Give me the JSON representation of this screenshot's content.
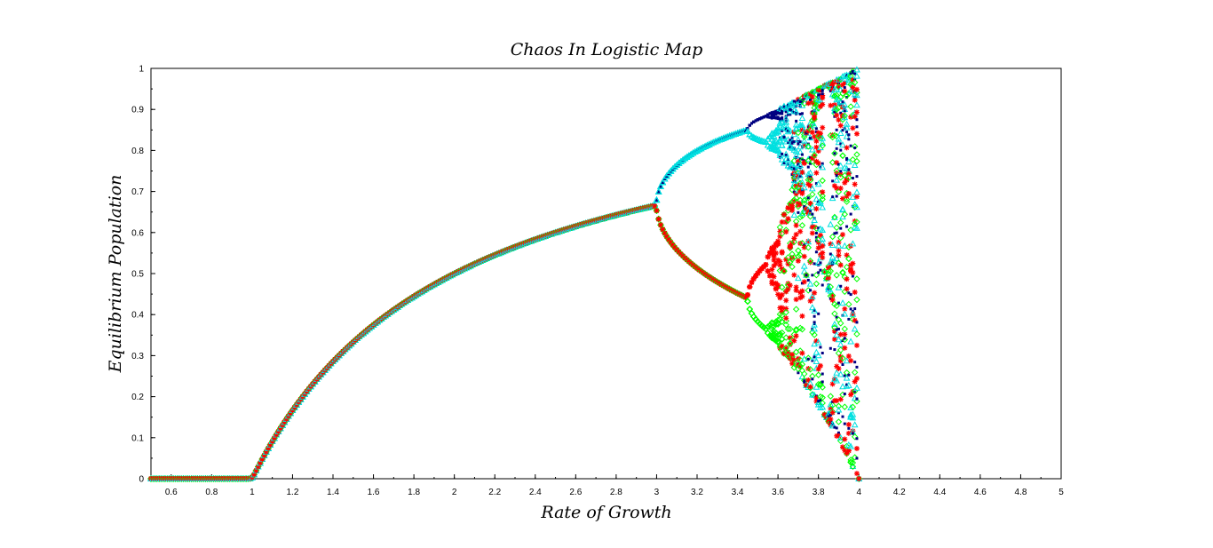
{
  "chart_data": {
    "type": "scatter",
    "title": "Chaos In Logistic Map",
    "xlabel": "Rate of Growth",
    "ylabel": "Equilibrium Population",
    "xlim": [
      0.5,
      5
    ],
    "ylim": [
      0,
      1
    ],
    "x_ticks": [
      "0.6",
      "0.8",
      "1",
      "1.2",
      "1.4",
      "1.6",
      "1.8",
      "2",
      "2.2",
      "2.4",
      "2.6",
      "2.8",
      "3",
      "3.2",
      "3.4",
      "3.6",
      "3.8",
      "4",
      "4.2",
      "4.4",
      "4.6",
      "4.8",
      "5"
    ],
    "x_tick_values": [
      0.6,
      0.8,
      1.0,
      1.2,
      1.4,
      1.6,
      1.8,
      2.0,
      2.2,
      2.4,
      2.6,
      2.8,
      3.0,
      3.2,
      3.4,
      3.6,
      3.8,
      4.0,
      4.2,
      4.4,
      4.6,
      4.8,
      5.0
    ],
    "y_ticks": [
      "0",
      "0.1",
      "0.2",
      "0.3",
      "0.4",
      "0.5",
      "0.6",
      "0.7",
      "0.8",
      "0.9",
      "1"
    ],
    "y_tick_values": [
      0,
      0.1,
      0.2,
      0.3,
      0.4,
      0.5,
      0.6,
      0.7,
      0.8,
      0.9,
      1.0
    ],
    "grid": false,
    "series": [
      {
        "marker": "point",
        "color": "#000080"
      },
      {
        "marker": "diamond",
        "color": "#00ff00"
      },
      {
        "marker": "triangle",
        "color": "#00e0e0"
      },
      {
        "marker": "star",
        "color": "#ff0000"
      }
    ],
    "r_range": [
      0.5,
      4.0
    ],
    "r_step": 0.01,
    "transient_iterations": 300,
    "recorded_iterations": 32,
    "initial_population": 0.5
  }
}
